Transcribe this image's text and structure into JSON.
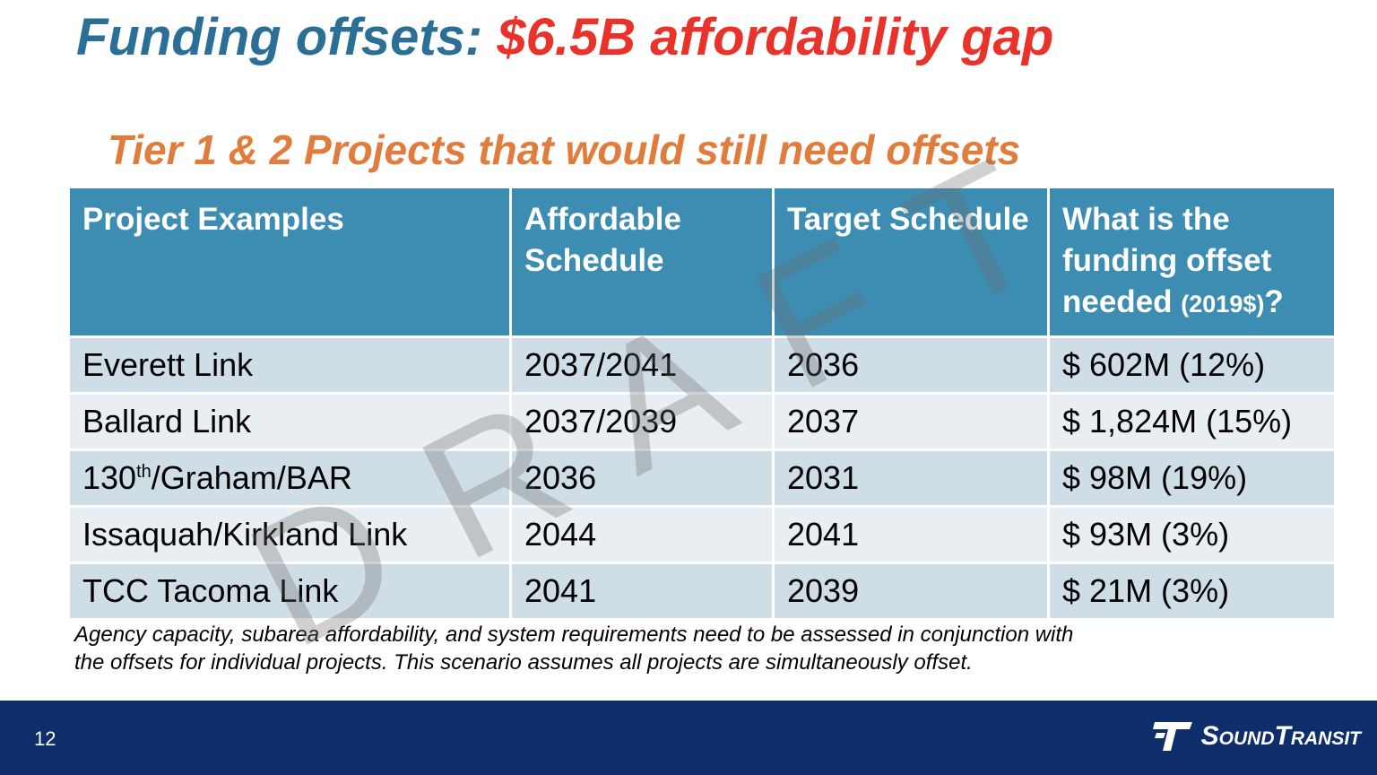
{
  "title": {
    "prefix": "Funding offsets:",
    "highlight": "$6.5B affordability gap"
  },
  "subtitle": "Tier 1 & 2 Projects that would still need offsets",
  "table": {
    "header": [
      "Project Examples",
      "Affordable Schedule",
      "Target Schedule",
      {
        "text": "What is the funding offset needed",
        "unit": "(2019$)",
        "end": "?"
      }
    ],
    "rows": [
      [
        "Everett Link",
        "2037/2041",
        "2036",
        "$ 602M (12%)"
      ],
      [
        "Ballard Link",
        "2037/2039",
        "2037",
        "$ 1,824M (15%)"
      ],
      [
        {
          "base": "130",
          "sup": "th",
          "rest": "/Graham/BAR"
        },
        "2036",
        "2031",
        "$ 98M (19%)"
      ],
      [
        "Issaquah/Kirkland Link",
        "2044",
        "2041",
        "$ 93M (3%)"
      ],
      [
        "TCC Tacoma Link",
        "2041",
        "2039",
        "$ 21M (3%)"
      ]
    ]
  },
  "footnote": [
    "Agency capacity, subarea affordability, and system requirements need to be assessed in conjunction with",
    "the offsets for individual projects. This scenario assumes all projects are simultaneously offset."
  ],
  "watermark": "DRAFT",
  "footer": {
    "page_number": "12",
    "logo": "SoundTransit"
  }
}
